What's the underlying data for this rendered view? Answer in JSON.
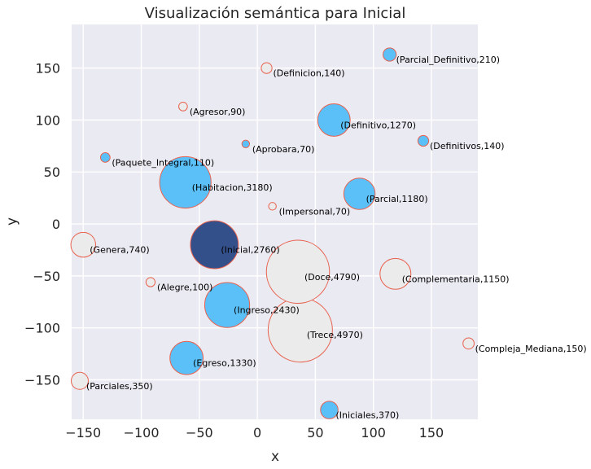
{
  "chart_data": {
    "type": "scatter",
    "title": "Visualización semántica para Inicial",
    "xlabel": "x",
    "ylabel": "y",
    "xlim": [
      -160,
      190
    ],
    "ylim": [
      -188,
      192
    ],
    "xticks": [
      -150,
      -100,
      -50,
      0,
      50,
      100,
      150
    ],
    "yticks": [
      -150,
      -100,
      -50,
      0,
      50,
      100,
      150
    ],
    "xtick_labels": [
      "−150",
      "−100",
      "−50",
      "0",
      "50",
      "100",
      "150"
    ],
    "ytick_labels": [
      "−150",
      "−100",
      "−50",
      "0",
      "50",
      "100",
      "150"
    ],
    "grid": true,
    "colors": {
      "background": "#eaeaf2",
      "grid": "#ffffff",
      "highlight": "#34508a",
      "filled": "#5bc0f8",
      "hollow": "#ebebeb",
      "edge": "#e8614e"
    },
    "points": [
      {
        "label": "(Parcial_Definitivo,210)",
        "x": 114,
        "y": 163,
        "size": 210,
        "style": "filled"
      },
      {
        "label": "(Definicion,140)",
        "x": 8,
        "y": 150,
        "size": 140,
        "style": "hollow"
      },
      {
        "label": "(Agresor,90)",
        "x": -64,
        "y": 113,
        "size": 90,
        "style": "hollow"
      },
      {
        "label": "(Definitivo,1270)",
        "x": 66,
        "y": 100,
        "size": 1270,
        "style": "filled"
      },
      {
        "label": "(Aprobara,70)",
        "x": -10,
        "y": 77,
        "size": 70,
        "style": "filled"
      },
      {
        "label": "(Definitivos,140)",
        "x": 143,
        "y": 80,
        "size": 140,
        "style": "filled"
      },
      {
        "label": "(Paquete_Integral,110)",
        "x": -131,
        "y": 64,
        "size": 110,
        "style": "filled"
      },
      {
        "label": "(Habitacion,3180)",
        "x": -62,
        "y": 40,
        "size": 3180,
        "style": "filled"
      },
      {
        "label": "(Parcial,1180)",
        "x": 88,
        "y": 29,
        "size": 1180,
        "style": "filled"
      },
      {
        "label": "(Impersonal,70)",
        "x": 13,
        "y": 17,
        "size": 70,
        "style": "hollow"
      },
      {
        "label": "(Genera,740)",
        "x": -150,
        "y": -20,
        "size": 740,
        "style": "hollow"
      },
      {
        "label": "(Inicial,2760)",
        "x": -37,
        "y": -20,
        "size": 2760,
        "style": "highlight"
      },
      {
        "label": "(Doce,4790)",
        "x": 35,
        "y": -46,
        "size": 4790,
        "style": "hollow"
      },
      {
        "label": "(Complementaria,1150)",
        "x": 119,
        "y": -48,
        "size": 1150,
        "style": "hollow"
      },
      {
        "label": "(Alegre,100)",
        "x": -92,
        "y": -56,
        "size": 100,
        "style": "hollow"
      },
      {
        "label": "(Ingreso,2430)",
        "x": -26,
        "y": -78,
        "size": 2430,
        "style": "filled"
      },
      {
        "label": "(Trece,4970)",
        "x": 37,
        "y": -102,
        "size": 4970,
        "style": "hollow"
      },
      {
        "label": "(Compleja_Mediana,150)",
        "x": 182,
        "y": -115,
        "size": 150,
        "style": "hollow"
      },
      {
        "label": "(Egreso,1330)",
        "x": -61,
        "y": -129,
        "size": 1330,
        "style": "filled"
      },
      {
        "label": "(Parciales,350)",
        "x": -153,
        "y": -151,
        "size": 350,
        "style": "hollow"
      },
      {
        "label": "(Iniciales,370)",
        "x": 62,
        "y": -179,
        "size": 370,
        "style": "filled"
      }
    ]
  }
}
